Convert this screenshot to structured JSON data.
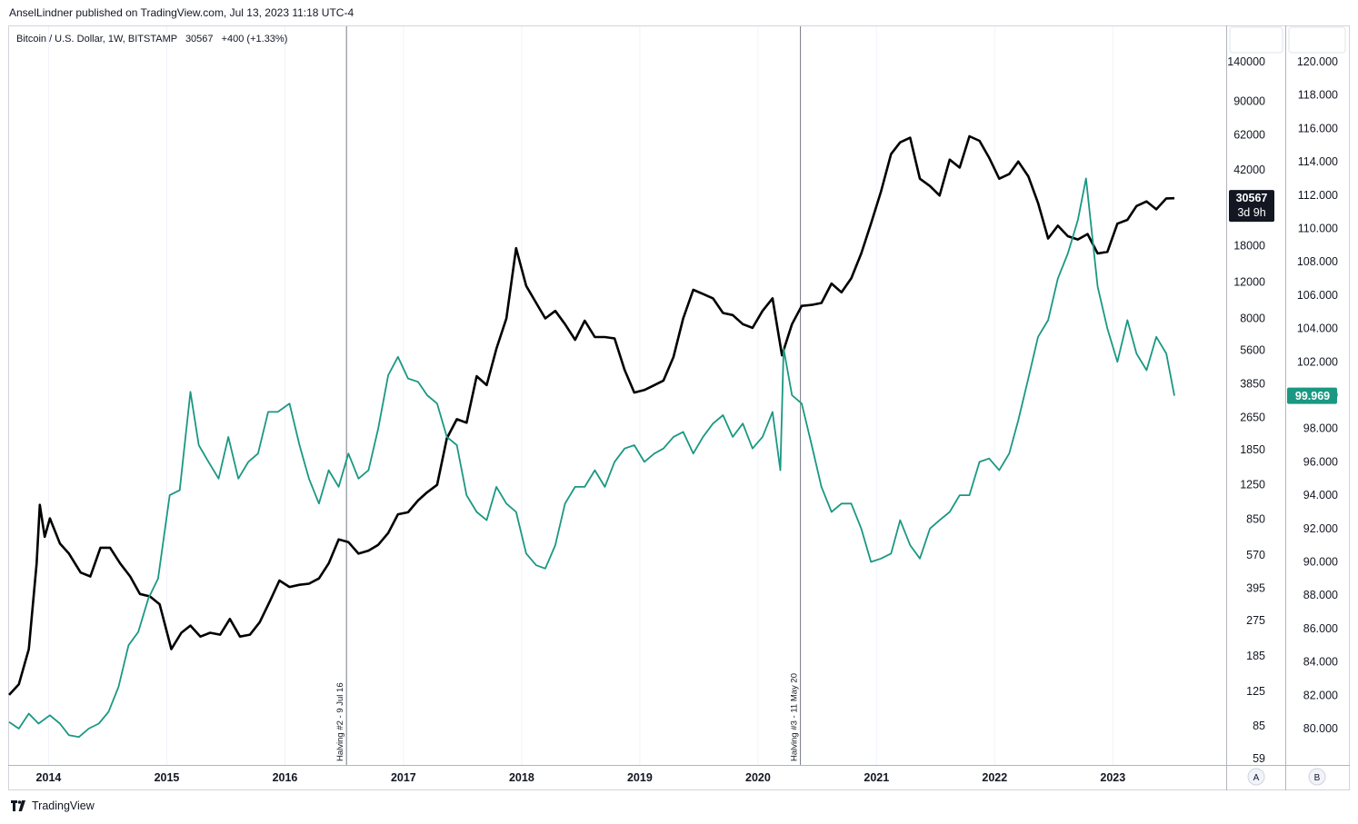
{
  "header": {
    "publisher_line": "AnselLindner published on TradingView.com, Jul 13, 2023 11:18 UTC-4"
  },
  "legend": {
    "symbol_line": "Bitcoin / U.S. Dollar, 1W, BITSTAMP",
    "price": "30567",
    "change": "+400 (+1.33%)"
  },
  "footer": {
    "brand": "TradingView"
  },
  "scale_buttons": {
    "left": "A",
    "right": "B"
  },
  "halvings": [
    {
      "label": "Halving #2 - 9 Jul 16"
    },
    {
      "label": "Halving #3 - 11 May 20"
    }
  ],
  "last_price_badge": {
    "price": "30567",
    "countdown": "3d 9h",
    "color": "#131722"
  },
  "last_b_badge": {
    "value": "99.969",
    "color": "#1a9882"
  },
  "colors": {
    "btc": "#000000",
    "dxy": "#1a9882",
    "grid": "#f0f3fa",
    "border": "#b2b5be"
  },
  "chart_data": {
    "type": "line",
    "x_ticks": [
      "2014",
      "2015",
      "2016",
      "2017",
      "2018",
      "2019",
      "2020",
      "2021",
      "2022",
      "2023"
    ],
    "y_axis_a": {
      "scale": "log",
      "ticks": [
        "140000",
        "90000",
        "62000",
        "42000",
        "18000",
        "12000",
        "8000",
        "5600",
        "3850",
        "2650",
        "1850",
        "1250",
        "850",
        "570",
        "395",
        "275",
        "185",
        "125",
        "85",
        "59"
      ]
    },
    "y_axis_b": {
      "scale": "linear",
      "ticks": [
        "120.000",
        "118.000",
        "116.000",
        "114.000",
        "112.000",
        "110.000",
        "108.000",
        "106.000",
        "104.000",
        "102.000",
        "100.000",
        "98.000",
        "96.000",
        "94.000",
        "92.000",
        "90.000",
        "88.000",
        "86.000",
        "84.000",
        "82.000",
        "80.000"
      ]
    },
    "series": [
      {
        "name": "Bitcoin / U.S. Dollar",
        "axis": "A",
        "points": [
          [
            "2013-09-01",
            120
          ],
          [
            "2013-10-01",
            135
          ],
          [
            "2013-11-01",
            200
          ],
          [
            "2013-11-25",
            520
          ],
          [
            "2013-12-05",
            1000
          ],
          [
            "2013-12-20",
            700
          ],
          [
            "2014-01-05",
            860
          ],
          [
            "2014-02-05",
            650
          ],
          [
            "2014-03-05",
            580
          ],
          [
            "2014-04-10",
            470
          ],
          [
            "2014-05-10",
            450
          ],
          [
            "2014-06-10",
            620
          ],
          [
            "2014-07-10",
            620
          ],
          [
            "2014-08-10",
            520
          ],
          [
            "2014-09-10",
            450
          ],
          [
            "2014-10-10",
            370
          ],
          [
            "2014-11-10",
            360
          ],
          [
            "2014-12-10",
            330
          ],
          [
            "2015-01-15",
            200
          ],
          [
            "2015-02-15",
            240
          ],
          [
            "2015-03-15",
            260
          ],
          [
            "2015-04-15",
            230
          ],
          [
            "2015-05-15",
            240
          ],
          [
            "2015-06-15",
            235
          ],
          [
            "2015-07-15",
            280
          ],
          [
            "2015-08-15",
            230
          ],
          [
            "2015-09-15",
            235
          ],
          [
            "2015-10-15",
            270
          ],
          [
            "2015-11-15",
            340
          ],
          [
            "2015-12-15",
            430
          ],
          [
            "2016-01-15",
            400
          ],
          [
            "2016-02-15",
            410
          ],
          [
            "2016-03-15",
            415
          ],
          [
            "2016-04-15",
            440
          ],
          [
            "2016-05-15",
            520
          ],
          [
            "2016-06-15",
            680
          ],
          [
            "2016-07-15",
            660
          ],
          [
            "2016-08-15",
            580
          ],
          [
            "2016-09-15",
            600
          ],
          [
            "2016-10-15",
            640
          ],
          [
            "2016-11-15",
            730
          ],
          [
            "2016-12-15",
            900
          ],
          [
            "2017-01-15",
            920
          ],
          [
            "2017-02-15",
            1050
          ],
          [
            "2017-03-15",
            1150
          ],
          [
            "2017-04-15",
            1250
          ],
          [
            "2017-05-15",
            2100
          ],
          [
            "2017-06-15",
            2600
          ],
          [
            "2017-07-15",
            2500
          ],
          [
            "2017-08-15",
            4200
          ],
          [
            "2017-09-15",
            3800
          ],
          [
            "2017-10-15",
            5700
          ],
          [
            "2017-11-15",
            8000
          ],
          [
            "2017-12-15",
            17500
          ],
          [
            "2018-01-15",
            11500
          ],
          [
            "2018-02-15",
            9500
          ],
          [
            "2018-03-15",
            8000
          ],
          [
            "2018-04-15",
            8700
          ],
          [
            "2018-05-15",
            7500
          ],
          [
            "2018-06-15",
            6300
          ],
          [
            "2018-07-15",
            7800
          ],
          [
            "2018-08-15",
            6500
          ],
          [
            "2018-09-15",
            6500
          ],
          [
            "2018-10-15",
            6400
          ],
          [
            "2018-11-15",
            4500
          ],
          [
            "2018-12-15",
            3500
          ],
          [
            "2019-01-15",
            3600
          ],
          [
            "2019-02-15",
            3800
          ],
          [
            "2019-03-15",
            4000
          ],
          [
            "2019-04-15",
            5200
          ],
          [
            "2019-05-15",
            8000
          ],
          [
            "2019-06-15",
            11000
          ],
          [
            "2019-07-15",
            10500
          ],
          [
            "2019-08-15",
            10000
          ],
          [
            "2019-09-15",
            8500
          ],
          [
            "2019-10-15",
            8300
          ],
          [
            "2019-11-15",
            7500
          ],
          [
            "2019-12-15",
            7200
          ],
          [
            "2020-01-15",
            8700
          ],
          [
            "2020-02-15",
            10000
          ],
          [
            "2020-03-15",
            5300
          ],
          [
            "2020-04-15",
            7500
          ],
          [
            "2020-05-15",
            9200
          ],
          [
            "2020-06-15",
            9300
          ],
          [
            "2020-07-15",
            9500
          ],
          [
            "2020-08-15",
            11800
          ],
          [
            "2020-09-15",
            10700
          ],
          [
            "2020-10-15",
            12500
          ],
          [
            "2020-11-15",
            16500
          ],
          [
            "2020-12-15",
            23000
          ],
          [
            "2021-01-15",
            33000
          ],
          [
            "2021-02-15",
            50000
          ],
          [
            "2021-03-15",
            57000
          ],
          [
            "2021-04-15",
            60000
          ],
          [
            "2021-05-15",
            38000
          ],
          [
            "2021-06-15",
            35000
          ],
          [
            "2021-07-15",
            31500
          ],
          [
            "2021-08-15",
            47000
          ],
          [
            "2021-09-15",
            43000
          ],
          [
            "2021-10-15",
            61000
          ],
          [
            "2021-11-15",
            58000
          ],
          [
            "2021-12-15",
            48000
          ],
          [
            "2022-01-15",
            38000
          ],
          [
            "2022-02-15",
            40000
          ],
          [
            "2022-03-15",
            46000
          ],
          [
            "2022-04-15",
            39000
          ],
          [
            "2022-05-15",
            29000
          ],
          [
            "2022-06-15",
            19500
          ],
          [
            "2022-07-15",
            22500
          ],
          [
            "2022-08-15",
            20000
          ],
          [
            "2022-09-15",
            19300
          ],
          [
            "2022-10-15",
            20500
          ],
          [
            "2022-11-15",
            16500
          ],
          [
            "2022-12-15",
            16800
          ],
          [
            "2023-01-15",
            23000
          ],
          [
            "2023-02-15",
            24000
          ],
          [
            "2023-03-15",
            28000
          ],
          [
            "2023-04-15",
            29500
          ],
          [
            "2023-05-15",
            27000
          ],
          [
            "2023-06-15",
            30500
          ],
          [
            "2023-07-10",
            30567
          ]
        ]
      },
      {
        "name": "",
        "axis": "B",
        "points": [
          [
            "2013-09-01",
            80.4
          ],
          [
            "2013-10-01",
            80.0
          ],
          [
            "2013-11-01",
            80.9
          ],
          [
            "2013-12-01",
            80.3
          ],
          [
            "2014-01-05",
            80.8
          ],
          [
            "2014-02-05",
            80.3
          ],
          [
            "2014-03-05",
            79.6
          ],
          [
            "2014-04-05",
            79.5
          ],
          [
            "2014-05-05",
            80.0
          ],
          [
            "2014-06-05",
            80.3
          ],
          [
            "2014-07-05",
            81.0
          ],
          [
            "2014-08-05",
            82.5
          ],
          [
            "2014-09-05",
            85.0
          ],
          [
            "2014-10-05",
            85.8
          ],
          [
            "2014-11-05",
            87.8
          ],
          [
            "2014-12-05",
            89.0
          ],
          [
            "2015-01-10",
            94.0
          ],
          [
            "2015-02-10",
            94.3
          ],
          [
            "2015-03-15",
            100.2
          ],
          [
            "2015-04-10",
            97.0
          ],
          [
            "2015-05-10",
            96.0
          ],
          [
            "2015-06-10",
            95.0
          ],
          [
            "2015-07-10",
            97.5
          ],
          [
            "2015-08-10",
            95.0
          ],
          [
            "2015-09-10",
            96.0
          ],
          [
            "2015-10-10",
            96.5
          ],
          [
            "2015-11-10",
            99.0
          ],
          [
            "2015-12-10",
            99.0
          ],
          [
            "2016-01-15",
            99.5
          ],
          [
            "2016-02-15",
            97.0
          ],
          [
            "2016-03-15",
            95.0
          ],
          [
            "2016-04-15",
            93.5
          ],
          [
            "2016-05-15",
            95.5
          ],
          [
            "2016-06-15",
            94.5
          ],
          [
            "2016-07-15",
            96.5
          ],
          [
            "2016-08-15",
            95.0
          ],
          [
            "2016-09-15",
            95.5
          ],
          [
            "2016-10-15",
            98.0
          ],
          [
            "2016-11-15",
            101.2
          ],
          [
            "2016-12-15",
            102.3
          ],
          [
            "2017-01-15",
            101.0
          ],
          [
            "2017-02-15",
            100.8
          ],
          [
            "2017-03-15",
            100.0
          ],
          [
            "2017-04-15",
            99.5
          ],
          [
            "2017-05-15",
            97.5
          ],
          [
            "2017-06-15",
            97.0
          ],
          [
            "2017-07-15",
            94.0
          ],
          [
            "2017-08-15",
            93.0
          ],
          [
            "2017-09-15",
            92.5
          ],
          [
            "2017-10-15",
            94.5
          ],
          [
            "2017-11-15",
            93.5
          ],
          [
            "2017-12-15",
            93.0
          ],
          [
            "2018-01-15",
            90.5
          ],
          [
            "2018-02-15",
            89.8
          ],
          [
            "2018-03-15",
            89.6
          ],
          [
            "2018-04-15",
            91.0
          ],
          [
            "2018-05-15",
            93.5
          ],
          [
            "2018-06-15",
            94.5
          ],
          [
            "2018-07-15",
            94.5
          ],
          [
            "2018-08-15",
            95.5
          ],
          [
            "2018-09-15",
            94.5
          ],
          [
            "2018-10-15",
            96.0
          ],
          [
            "2018-11-15",
            96.8
          ],
          [
            "2018-12-15",
            97.0
          ],
          [
            "2019-01-15",
            96.0
          ],
          [
            "2019-02-15",
            96.5
          ],
          [
            "2019-03-15",
            96.8
          ],
          [
            "2019-04-15",
            97.5
          ],
          [
            "2019-05-15",
            97.8
          ],
          [
            "2019-06-15",
            96.5
          ],
          [
            "2019-07-15",
            97.5
          ],
          [
            "2019-08-15",
            98.3
          ],
          [
            "2019-09-15",
            98.8
          ],
          [
            "2019-10-15",
            97.5
          ],
          [
            "2019-11-15",
            98.3
          ],
          [
            "2019-12-15",
            96.8
          ],
          [
            "2020-01-15",
            97.5
          ],
          [
            "2020-02-15",
            99.0
          ],
          [
            "2020-03-10",
            95.5
          ],
          [
            "2020-03-20",
            102.8
          ],
          [
            "2020-04-15",
            100.0
          ],
          [
            "2020-05-15",
            99.5
          ],
          [
            "2020-06-15",
            97.0
          ],
          [
            "2020-07-15",
            94.5
          ],
          [
            "2020-08-15",
            93.0
          ],
          [
            "2020-09-15",
            93.5
          ],
          [
            "2020-10-15",
            93.5
          ],
          [
            "2020-11-15",
            92.0
          ],
          [
            "2020-12-15",
            90.0
          ],
          [
            "2021-01-15",
            90.2
          ],
          [
            "2021-02-15",
            90.5
          ],
          [
            "2021-03-15",
            92.5
          ],
          [
            "2021-04-15",
            91.0
          ],
          [
            "2021-05-15",
            90.2
          ],
          [
            "2021-06-15",
            92.0
          ],
          [
            "2021-07-15",
            92.5
          ],
          [
            "2021-08-15",
            93.0
          ],
          [
            "2021-09-15",
            94.0
          ],
          [
            "2021-10-15",
            94.0
          ],
          [
            "2021-11-15",
            96.0
          ],
          [
            "2021-12-15",
            96.2
          ],
          [
            "2022-01-15",
            95.5
          ],
          [
            "2022-02-15",
            96.5
          ],
          [
            "2022-03-15",
            98.5
          ],
          [
            "2022-04-15",
            101.0
          ],
          [
            "2022-05-15",
            103.5
          ],
          [
            "2022-06-15",
            104.5
          ],
          [
            "2022-07-15",
            107.0
          ],
          [
            "2022-08-15",
            108.5
          ],
          [
            "2022-09-15",
            110.5
          ],
          [
            "2022-10-10",
            113.0
          ],
          [
            "2022-11-15",
            106.5
          ],
          [
            "2022-12-15",
            104.0
          ],
          [
            "2023-01-15",
            102.0
          ],
          [
            "2023-02-15",
            104.5
          ],
          [
            "2023-03-15",
            102.5
          ],
          [
            "2023-04-15",
            101.5
          ],
          [
            "2023-05-15",
            103.5
          ],
          [
            "2023-06-15",
            102.5
          ],
          [
            "2023-07-10",
            99.969
          ]
        ]
      }
    ]
  }
}
